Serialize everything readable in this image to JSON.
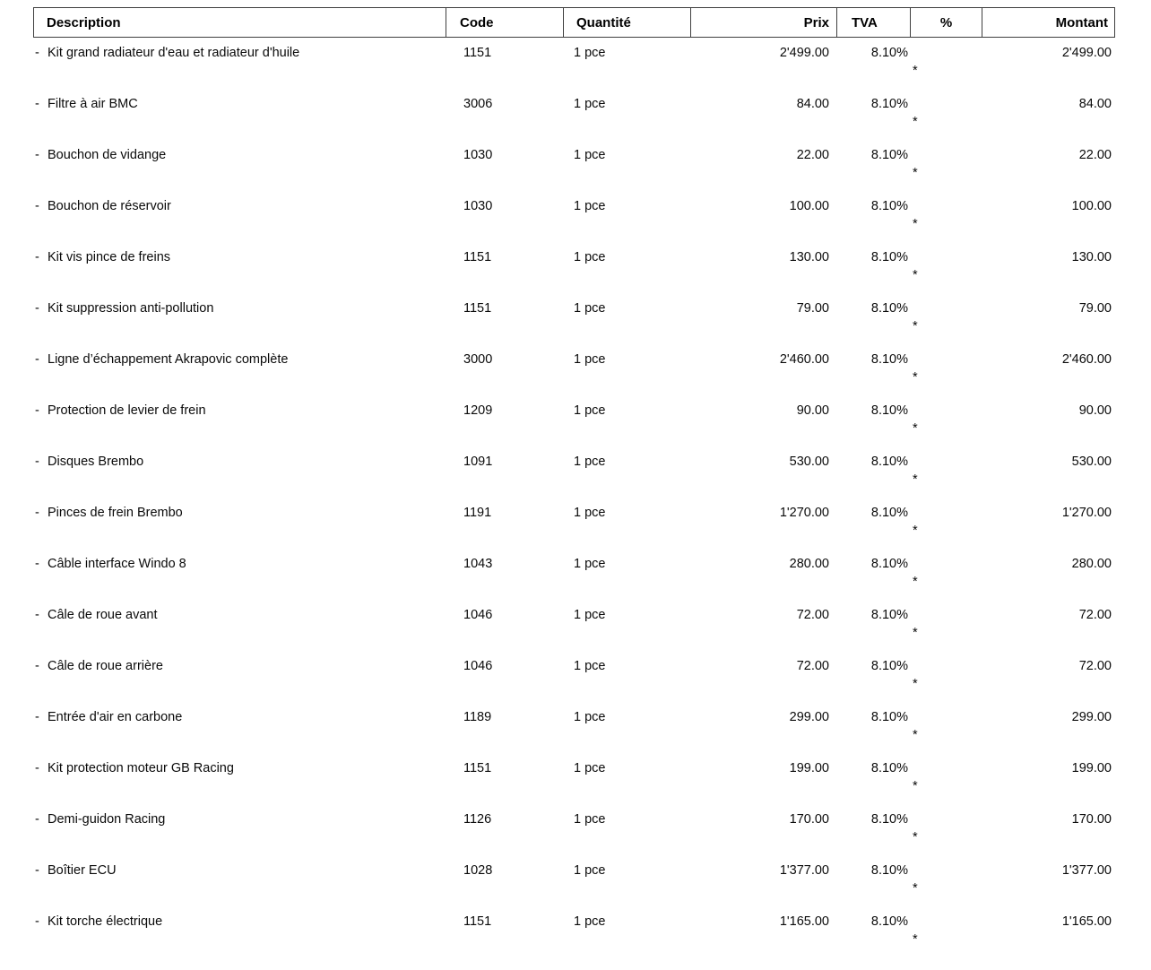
{
  "table": {
    "headers": [
      {
        "id": "description",
        "label": "Description"
      },
      {
        "id": "code",
        "label": "Code"
      },
      {
        "id": "quantity",
        "label": "Quantité"
      },
      {
        "id": "price",
        "label": "Prix"
      },
      {
        "id": "vat",
        "label": "TVA"
      },
      {
        "id": "percent",
        "label": "%"
      },
      {
        "id": "amount",
        "label": "Montant"
      }
    ],
    "row_bullet": "-",
    "rows": [
      {
        "description": "Kit grand radiateur d'eau et radiateur d'huile",
        "code": "1151",
        "quantity": "1 pce",
        "price": "2'499.00",
        "vat": "8.10%",
        "note": "*",
        "amount": "2'499.00"
      },
      {
        "description": "Filtre à air BMC",
        "code": "3006",
        "quantity": "1 pce",
        "price": "84.00",
        "vat": "8.10%",
        "note": "*",
        "amount": "84.00"
      },
      {
        "description": "Bouchon de vidange",
        "code": "1030",
        "quantity": "1 pce",
        "price": "22.00",
        "vat": "8.10%",
        "note": "*",
        "amount": "22.00"
      },
      {
        "description": "Bouchon de réservoir",
        "code": "1030",
        "quantity": "1 pce",
        "price": "100.00",
        "vat": "8.10%",
        "note": "*",
        "amount": "100.00"
      },
      {
        "description": "Kit vis pince de freins",
        "code": "1151",
        "quantity": "1 pce",
        "price": "130.00",
        "vat": "8.10%",
        "note": "*",
        "amount": "130.00"
      },
      {
        "description": "Kit suppression anti-pollution",
        "code": "1151",
        "quantity": "1 pce",
        "price": "79.00",
        "vat": "8.10%",
        "note": "*",
        "amount": "79.00"
      },
      {
        "description": "Ligne d’échappement Akrapovic complète",
        "code": "3000",
        "quantity": "1 pce",
        "price": "2'460.00",
        "vat": "8.10%",
        "note": "*",
        "amount": "2'460.00"
      },
      {
        "description": "Protection de levier de frein",
        "code": "1209",
        "quantity": "1 pce",
        "price": "90.00",
        "vat": "8.10%",
        "note": "*",
        "amount": "90.00"
      },
      {
        "description": "Disques Brembo",
        "code": "1091",
        "quantity": "1 pce",
        "price": "530.00",
        "vat": "8.10%",
        "note": "*",
        "amount": "530.00"
      },
      {
        "description": "Pinces de frein Brembo",
        "code": "1191",
        "quantity": "1 pce",
        "price": "1'270.00",
        "vat": "8.10%",
        "note": "*",
        "amount": "1'270.00"
      },
      {
        "description": "Câble interface Windo 8",
        "code": "1043",
        "quantity": "1 pce",
        "price": "280.00",
        "vat": "8.10%",
        "note": "*",
        "amount": "280.00"
      },
      {
        "description": "Câle de roue avant",
        "code": "1046",
        "quantity": "1 pce",
        "price": "72.00",
        "vat": "8.10%",
        "note": "*",
        "amount": "72.00"
      },
      {
        "description": "Câle de roue arrière",
        "code": "1046",
        "quantity": "1 pce",
        "price": "72.00",
        "vat": "8.10%",
        "note": "*",
        "amount": "72.00"
      },
      {
        "description": "Entrée d'air en carbone",
        "code": "1189",
        "quantity": "1 pce",
        "price": "299.00",
        "vat": "8.10%",
        "note": "*",
        "amount": "299.00"
      },
      {
        "description": "Kit protection moteur GB Racing",
        "code": "1151",
        "quantity": "1 pce",
        "price": "199.00",
        "vat": "8.10%",
        "note": "*",
        "amount": "199.00"
      },
      {
        "description": "Demi-guidon Racing",
        "code": "1126",
        "quantity": "1 pce",
        "price": "170.00",
        "vat": "8.10%",
        "note": "*",
        "amount": "170.00"
      },
      {
        "description": "Boîtier ECU",
        "code": "1028",
        "quantity": "1 pce",
        "price": "1'377.00",
        "vat": "8.10%",
        "note": "*",
        "amount": "1'377.00"
      },
      {
        "description": "Kit torche électrique",
        "code": "1151",
        "quantity": "1 pce",
        "price": "1'165.00",
        "vat": "8.10%",
        "note": "*",
        "amount": "1'165.00"
      }
    ]
  }
}
